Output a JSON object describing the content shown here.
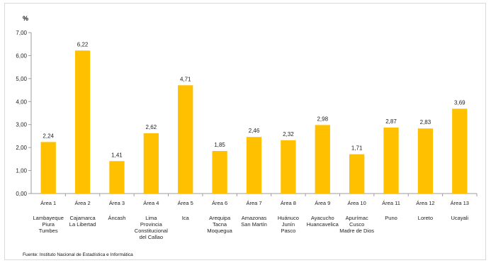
{
  "chart_data": {
    "type": "bar",
    "ylabel": "%",
    "ylim": [
      0,
      7
    ],
    "yticks": [
      "0,00",
      "1,00",
      "2,00",
      "3,00",
      "4,00",
      "5,00",
      "6,00",
      "7,00"
    ],
    "grid": false,
    "bar_color": "#ffc000",
    "categories": [
      "Área 1",
      "Área 2",
      "Área 3",
      "Área 4",
      "Área 5",
      "Área 6",
      "Área 7",
      "Área 8",
      "Área 9",
      "Área 10",
      "Área 11",
      "Área 12",
      "Área 13"
    ],
    "category_details": [
      [
        "Lambayeque",
        "Piura",
        "Tumbes"
      ],
      [
        "Cajamarca",
        "La Libertad"
      ],
      [
        "Áncash"
      ],
      [
        "Lima",
        "Provincia",
        "Constitucional",
        "del Callao"
      ],
      [
        "Ica"
      ],
      [
        "Arequipa",
        "Tacna",
        "Moquegua"
      ],
      [
        "Amazonas",
        "San Martín"
      ],
      [
        "Huánuco",
        "Junín",
        "Pasco"
      ],
      [
        "Ayacucho",
        "Huancavelica"
      ],
      [
        "Apurímac",
        "Cusco",
        "Madre de Dios"
      ],
      [
        "Puno"
      ],
      [
        "Loreto"
      ],
      [
        "Ucayali"
      ]
    ],
    "values": [
      2.24,
      6.22,
      1.41,
      2.62,
      4.71,
      1.85,
      2.46,
      2.32,
      2.98,
      1.71,
      2.87,
      2.83,
      3.69
    ],
    "value_labels": [
      "2,24",
      "6,22",
      "1,41",
      "2,62",
      "4,71",
      "1,85",
      "2,46",
      "2,32",
      "2,98",
      "1,71",
      "2,87",
      "2,83",
      "3,69"
    ]
  },
  "source": "Fuente: Instituto Nacional de Estadística e Informática"
}
